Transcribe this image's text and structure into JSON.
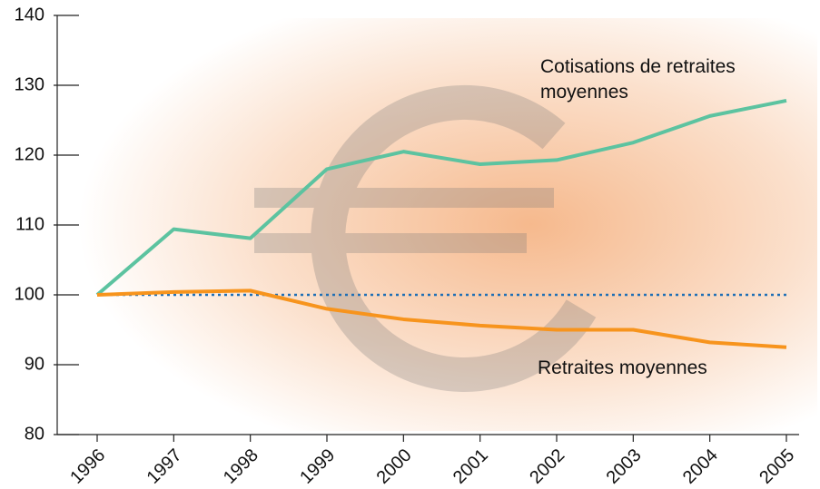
{
  "chart_data": {
    "type": "line",
    "categories": [
      "1996",
      "1997",
      "1998",
      "1999",
      "2000",
      "2001",
      "2002",
      "2003",
      "2004",
      "2005"
    ],
    "series": [
      {
        "name": "Cotisations de retraites moyennes",
        "color": "#5cc3a0",
        "values": [
          100,
          109.4,
          108.1,
          118.0,
          120.5,
          118.7,
          119.3,
          121.8,
          125.6,
          127.8
        ]
      },
      {
        "name": "Retraites moyennes",
        "color": "#f7941d",
        "values": [
          100,
          100.4,
          100.6,
          98.0,
          96.5,
          95.6,
          95.0,
          95.0,
          93.2,
          92.5
        ]
      }
    ],
    "reference_line": {
      "value": 100,
      "color": "#1f6fb5"
    },
    "ylim": [
      80,
      140
    ],
    "yticks": [
      80,
      90,
      100,
      110,
      120,
      130,
      140
    ]
  }
}
